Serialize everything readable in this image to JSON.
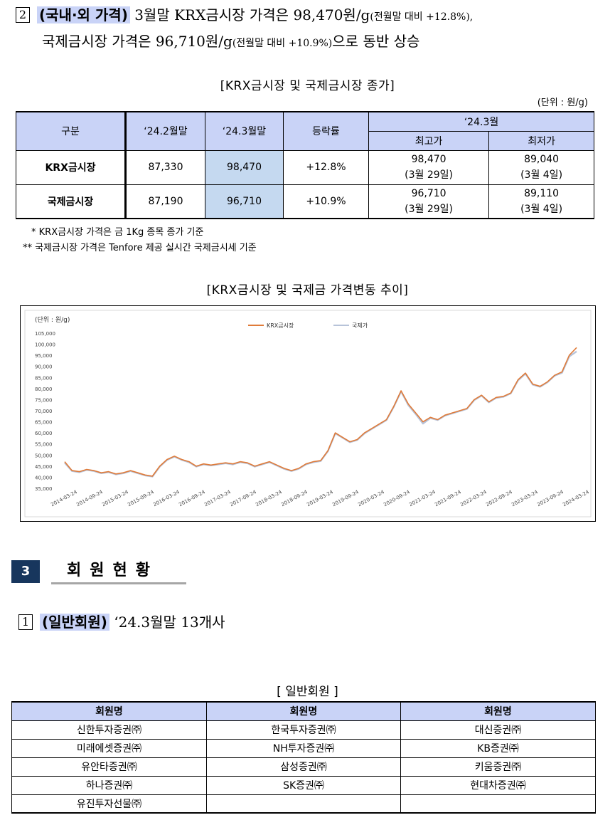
{
  "section2": {
    "number": "2",
    "heading": "(국내·외 가격)",
    "line1_text": "3월말 KRX금시장 가격은 98,470원/g",
    "line1_note": "(전월말 대비 +12.8%),",
    "line2_text_a": "국제금시장 가격은 96,710원/g",
    "line2_note": "(전월말 대비 +10.9%)",
    "line2_text_b": "으로 동반 상승"
  },
  "price_table": {
    "caption": "[KRX금시장 및 국제금시장 종가]",
    "unit": "(단위 : 원/g)",
    "headers": {
      "category": "구분",
      "feb": "‘24.2월말",
      "mar": "‘24.3월말",
      "change": "등락률",
      "month": "‘24.3월",
      "high": "최고가",
      "low": "최저가"
    },
    "rows": [
      {
        "name": "KRX금시장",
        "feb": "87,330",
        "mar": "98,470",
        "change": "+12.8%",
        "high": "98,470",
        "high_date": "(3월 29일)",
        "low": "89,040",
        "low_date": "(3월 4일)"
      },
      {
        "name": "국제금시장",
        "feb": "87,190",
        "mar": "96,710",
        "change": "+10.9%",
        "high": "96,710",
        "high_date": "(3월 29일)",
        "low": "89,110",
        "low_date": "(3월 4일)"
      }
    ],
    "notes": [
      "*  KRX금시장 가격은 금 1Kg 종목 종가 기준",
      "**  국제금시장 가격은 Tenfore 제공 실시간 국제금시세 기준"
    ]
  },
  "chart_caption": "[KRX금시장 및 국제금 가격변동 추이]",
  "chart_data": {
    "type": "line",
    "ylabel": "(단위 : 원/g)",
    "ylim": [
      35000,
      105000
    ],
    "yticks": [
      "105,000",
      "100,000",
      "95,000",
      "90,000",
      "85,000",
      "80,000",
      "75,000",
      "70,000",
      "65,000",
      "60,000",
      "55,000",
      "50,000",
      "45,000",
      "40,000",
      "35,000"
    ],
    "xticks": [
      "2014-03-24",
      "2014-09-24",
      "2015-03-24",
      "2015-09-24",
      "2016-03-24",
      "2016-09-24",
      "2017-03-24",
      "2017-09-24",
      "2018-03-24",
      "2018-09-24",
      "2019-03-24",
      "2019-09-24",
      "2020-03-24",
      "2020-09-24",
      "2021-03-24",
      "2021-09-24",
      "2022-03-24",
      "2022-09-24",
      "2023-03-24",
      "2023-09-24",
      "2024-03-24"
    ],
    "legend_position": "top-center",
    "series": [
      {
        "name": "KRX금시장",
        "color": "#e07b39",
        "values": [
          47000,
          43000,
          42500,
          43500,
          43000,
          42000,
          42500,
          41500,
          42000,
          43000,
          42000,
          41000,
          40500,
          45000,
          48000,
          49500,
          48000,
          47000,
          45000,
          46000,
          45500,
          46000,
          46500,
          46000,
          47000,
          46500,
          45000,
          46000,
          47000,
          45500,
          44000,
          43000,
          44000,
          46000,
          47000,
          47500,
          52000,
          60000,
          58000,
          56000,
          57000,
          60000,
          62000,
          64000,
          66000,
          72000,
          79000,
          73000,
          69000,
          65000,
          67000,
          66000,
          68000,
          69000,
          70000,
          71000,
          75000,
          77000,
          74000,
          76000,
          76500,
          78000,
          84000,
          87000,
          82000,
          81000,
          83000,
          86000,
          87500,
          95000,
          98470
        ]
      },
      {
        "name": "국제가",
        "color": "#b7c3d9",
        "values": [
          46500,
          42800,
          42300,
          43300,
          42800,
          41800,
          42300,
          41300,
          41800,
          42800,
          41800,
          40800,
          40300,
          44800,
          47800,
          49300,
          47800,
          46800,
          44800,
          45800,
          45300,
          45800,
          46300,
          45800,
          46800,
          46300,
          44800,
          45800,
          46800,
          45300,
          43800,
          42800,
          43800,
          45800,
          46800,
          47300,
          51800,
          59800,
          57800,
          55800,
          56800,
          59800,
          61800,
          63800,
          65800,
          71800,
          78700,
          72500,
          68500,
          64200,
          66700,
          65800,
          67800,
          68800,
          69800,
          70800,
          74800,
          76800,
          73800,
          75800,
          76300,
          77800,
          83700,
          86700,
          81800,
          80800,
          82800,
          85800,
          87100,
          94500,
          96710
        ]
      }
    ]
  },
  "section3": {
    "number": "3",
    "title": "회원현황"
  },
  "members_intro": {
    "number": "1",
    "heading": "(일반회원)",
    "text": "‘24.3월말 13개사"
  },
  "members_table": {
    "caption": "[ 일반회원 ]",
    "header": "회원명",
    "rows": [
      [
        "신한투자증권㈜",
        "한국투자증권㈜",
        "대신증권㈜"
      ],
      [
        "미래에셋증권㈜",
        "NH투자증권㈜",
        "KB증권㈜"
      ],
      [
        "유안타증권㈜",
        "삼성증권㈜",
        "키움증권㈜"
      ],
      [
        "하나증권㈜",
        "SK증권㈜",
        "현대차증권㈜"
      ],
      [
        "유진투자선물㈜",
        "",
        ""
      ]
    ]
  }
}
